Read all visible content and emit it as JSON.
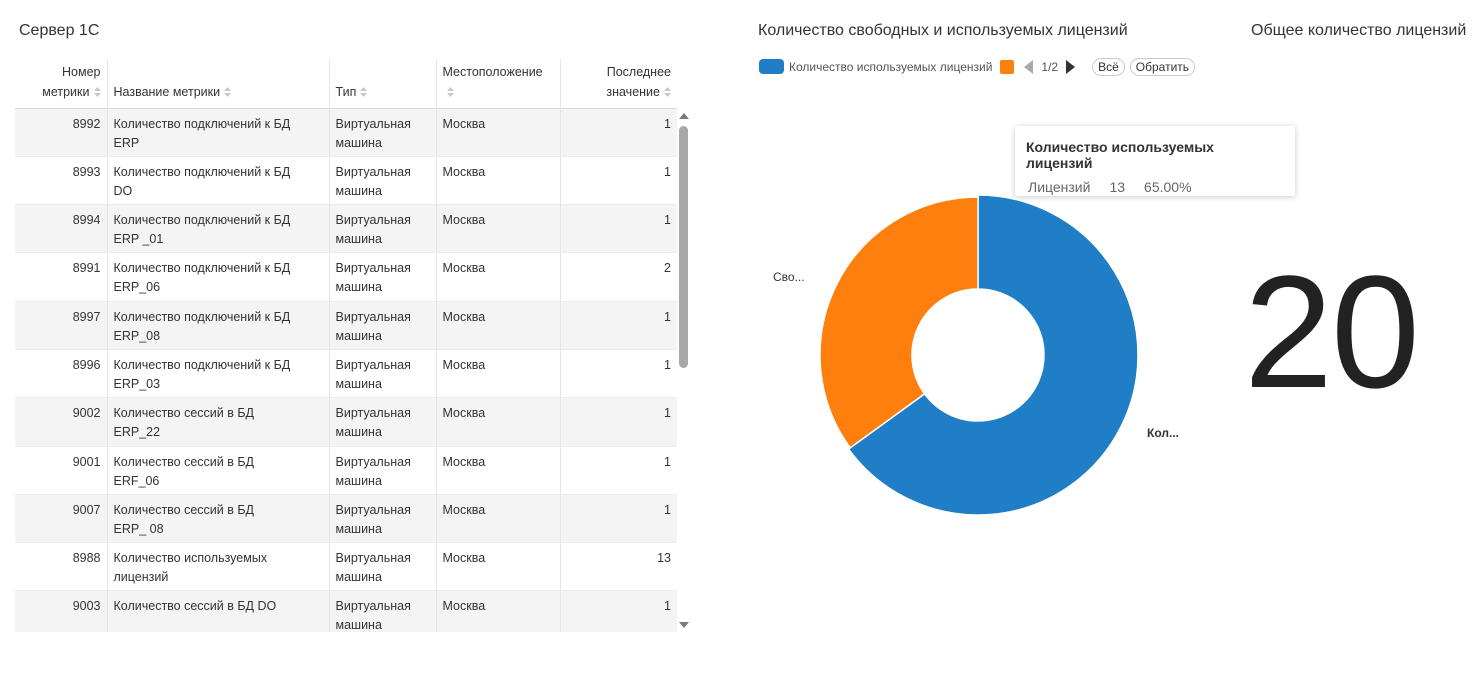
{
  "left_panel": {
    "title": "Сервер 1С",
    "columns": [
      {
        "label_line1": "Номер",
        "label_line2": "метрики"
      },
      {
        "label_line1": "",
        "label_line2": "Название метрики"
      },
      {
        "label_line1": "",
        "label_line2": "Тип"
      },
      {
        "label_line1": "",
        "label_line2": "Местоположение"
      },
      {
        "label_line1": "Последнее",
        "label_line2": "значение"
      }
    ],
    "rows": [
      {
        "id": "8992",
        "name1": "Количество подключений к БД",
        "name2": "ERP",
        "type1": "Виртуальная",
        "type2": "машина",
        "location": "Москва",
        "value": "1"
      },
      {
        "id": "8993",
        "name1": "Количество подключений к БД",
        "name2": "DO",
        "type1": "Виртуальная",
        "type2": "машина",
        "location": "Москва",
        "value": "1"
      },
      {
        "id": "8994",
        "name1": "Количество подключений к БД",
        "name2": "ERP _01",
        "type1": "Виртуальная",
        "type2": "машина",
        "location": "Москва",
        "value": "1"
      },
      {
        "id": "8991",
        "name1": "Количество подключений к БД",
        "name2": "ERP_06",
        "type1": "Виртуальная",
        "type2": "машина",
        "location": "Москва",
        "value": "2"
      },
      {
        "id": "8997",
        "name1": "Количество подключений к БД",
        "name2": "ERP_08",
        "type1": "Виртуальная",
        "type2": "машина",
        "location": "Москва",
        "value": "1"
      },
      {
        "id": "8996",
        "name1": "Количество подключений к БД",
        "name2": "ERP_03",
        "type1": "Виртуальная",
        "type2": "машина",
        "location": "Москва",
        "value": "1"
      },
      {
        "id": "9002",
        "name1": "Количество сессий в БД",
        "name2": "ERP_22",
        "type1": "Виртуальная",
        "type2": "машина",
        "location": "Москва",
        "value": "1"
      },
      {
        "id": "9001",
        "name1": "Количество сессий в БД",
        "name2": "ERF_06",
        "type1": "Виртуальная",
        "type2": "машина",
        "location": "Москва",
        "value": "1"
      },
      {
        "id": "9007",
        "name1": "Количество сессий в БД",
        "name2": "ERP_ 08",
        "type1": "Виртуальная",
        "type2": "машина",
        "location": "Москва",
        "value": "1"
      },
      {
        "id": "8988",
        "name1": "Количество используемых лицензий",
        "name2": "",
        "type1": "Виртуальная",
        "type2": "машина",
        "location": "Москва",
        "value": "13"
      },
      {
        "id": "9003",
        "name1": "Количество сессий в БД DO",
        "name2": "",
        "type1": "Виртуальная",
        "type2": "машина",
        "location": "Москва",
        "value": "1"
      }
    ]
  },
  "middle_panel": {
    "title": "Количество свободных и используемых лицензий",
    "legend": {
      "item1_label": "Количество используемых лицензий",
      "item1_color": "#1f7ec5",
      "item2_color": "#ff7f0e",
      "page": "1/2",
      "all_button": "Всё",
      "invert_button": "Обратить"
    },
    "tooltip": {
      "title": "Количество используемых лицензий",
      "series_label": "Лицензий",
      "value": "13",
      "percent": "65.00%"
    },
    "slice_labels": {
      "free": "Сво...",
      "used": "Кол..."
    }
  },
  "right_panel": {
    "title": "Общее количество лицензий",
    "value": "20"
  },
  "chart_data": {
    "type": "pie",
    "title": "Количество свободных и используемых лицензий",
    "donut": true,
    "categories": [
      "Кол...",
      "Сво..."
    ],
    "values": [
      13,
      7
    ],
    "colors": [
      "#1f7ec5",
      "#ff7f0e"
    ],
    "legend": "top-left"
  }
}
